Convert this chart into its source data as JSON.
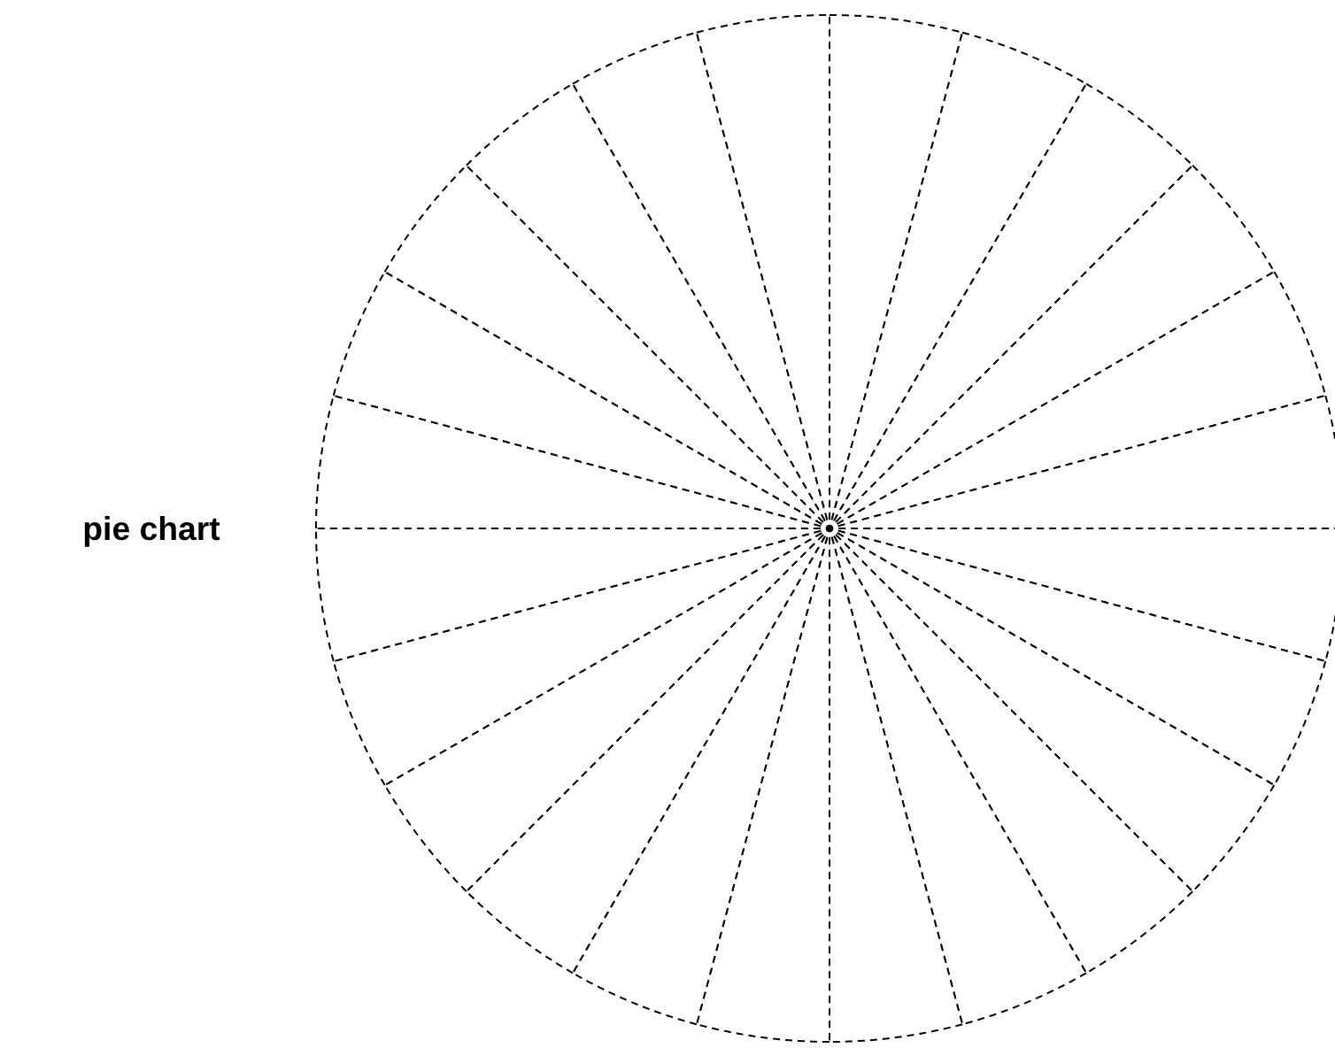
{
  "chart_data": {
    "type": "pie",
    "title": "pie chart",
    "categories": [
      null,
      null,
      null,
      null,
      null,
      null,
      null,
      null,
      null,
      null,
      null,
      null,
      null,
      null,
      null,
      null,
      null,
      null,
      null,
      null,
      null,
      null,
      null,
      null
    ],
    "values": [
      4.1667,
      4.1667,
      4.1667,
      4.1667,
      4.1667,
      4.1667,
      4.1667,
      4.1667,
      4.1667,
      4.1667,
      4.1667,
      4.1667,
      4.1667,
      4.1667,
      4.1667,
      4.1667,
      4.1667,
      4.1667,
      4.1667,
      4.1667,
      4.1667,
      4.1667,
      4.1667,
      4.1667
    ],
    "colors": [
      "#ffffff",
      "#ffffff",
      "#ffffff",
      "#ffffff",
      "#ffffff",
      "#ffffff",
      "#ffffff",
      "#ffffff",
      "#ffffff",
      "#ffffff",
      "#ffffff",
      "#ffffff",
      "#ffffff",
      "#ffffff",
      "#ffffff",
      "#ffffff",
      "#ffffff",
      "#ffffff",
      "#ffffff",
      "#ffffff",
      "#ffffff",
      "#ffffff",
      "#ffffff",
      "#ffffff"
    ],
    "line_style": "dashed"
  }
}
